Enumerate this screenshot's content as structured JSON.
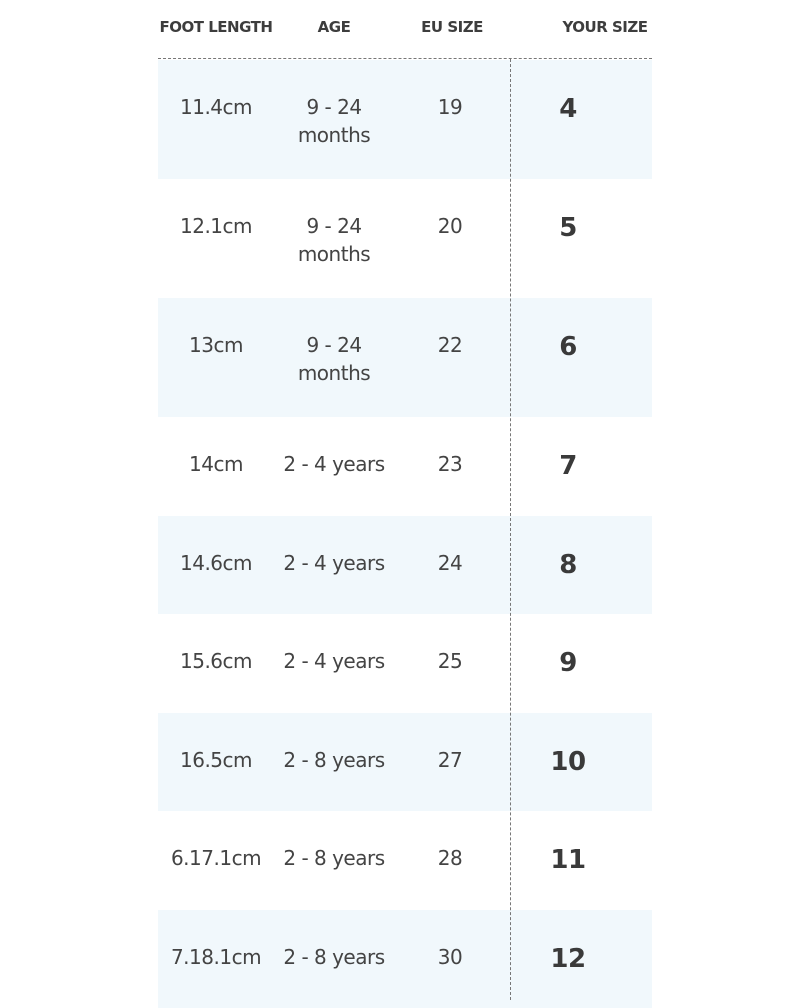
{
  "headers": {
    "foot_length": "FOOT LENGTH",
    "age": "AGE",
    "eu_size": "EU SIZE",
    "your_size": "YOUR SIZE"
  },
  "colors": {
    "row_shade": "#f1f8fc",
    "text": "#444444"
  },
  "rows": [
    {
      "foot_length": "11.4cm",
      "age": "9 - 24 months",
      "eu_size": "19",
      "your_size": "4"
    },
    {
      "foot_length": "12.1cm",
      "age": "9 - 24 months",
      "eu_size": "20",
      "your_size": "5"
    },
    {
      "foot_length": "13cm",
      "age": "9 - 24 months",
      "eu_size": "22",
      "your_size": "6"
    },
    {
      "foot_length": "14cm",
      "age": "2 - 4 years",
      "eu_size": "23",
      "your_size": "7"
    },
    {
      "foot_length": "14.6cm",
      "age": "2 - 4 years",
      "eu_size": "24",
      "your_size": "8"
    },
    {
      "foot_length": "15.6cm",
      "age": "2 - 4 years",
      "eu_size": "25",
      "your_size": "9"
    },
    {
      "foot_length": "16.5cm",
      "age": "2 - 8 years",
      "eu_size": "27",
      "your_size": "10"
    },
    {
      "foot_length": "6.17.1cm",
      "age": "2 - 8 years",
      "eu_size": "28",
      "your_size": "11"
    },
    {
      "foot_length": "7.18.1cm",
      "age": "2 - 8 years",
      "eu_size": "30",
      "your_size": "12"
    }
  ]
}
